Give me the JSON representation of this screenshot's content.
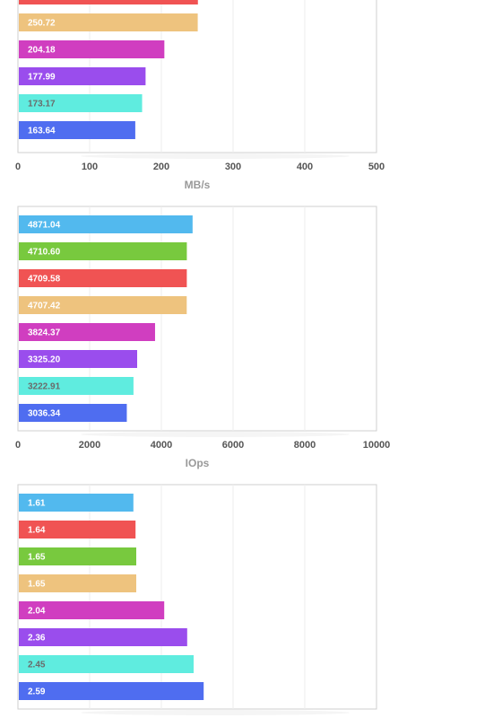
{
  "chart_data": [
    {
      "type": "bar",
      "orientation": "horizontal",
      "xlabel": "MB/s",
      "xlim": [
        0,
        500
      ],
      "xticks": [
        "0",
        "100",
        "200",
        "300",
        "400",
        "500"
      ],
      "grid": true,
      "series": [
        {
          "label": "250.97",
          "value": 250.97,
          "color": "#f05353"
        },
        {
          "label": "250.72",
          "value": 250.72,
          "color": "#eec37e"
        },
        {
          "label": "204.18",
          "value": 204.18,
          "color": "#d03ec0"
        },
        {
          "label": "177.99",
          "value": 177.99,
          "color": "#9a4ded"
        },
        {
          "label": "173.17",
          "value": 173.17,
          "color": "#5fecdf"
        },
        {
          "label": "163.64",
          "value": 163.64,
          "color": "#4f6df0"
        }
      ]
    },
    {
      "type": "bar",
      "orientation": "horizontal",
      "xlabel": "IOps",
      "xlim": [
        0,
        10000
      ],
      "xticks": [
        "0",
        "2000",
        "4000",
        "6000",
        "8000",
        "10000"
      ],
      "grid": true,
      "series": [
        {
          "label": "4871.04",
          "value": 4871.04,
          "color": "#52b9ee"
        },
        {
          "label": "4710.60",
          "value": 4710.6,
          "color": "#78c93e"
        },
        {
          "label": "4709.58",
          "value": 4709.58,
          "color": "#f05353"
        },
        {
          "label": "4707.42",
          "value": 4707.42,
          "color": "#eec37e"
        },
        {
          "label": "3824.37",
          "value": 3824.37,
          "color": "#d03ec0"
        },
        {
          "label": "3325.20",
          "value": 3325.2,
          "color": "#9a4ded"
        },
        {
          "label": "3222.91",
          "value": 3222.91,
          "color": "#5fecdf"
        },
        {
          "label": "3036.34",
          "value": 3036.34,
          "color": "#4f6df0"
        }
      ]
    },
    {
      "type": "bar",
      "orientation": "horizontal",
      "xlim": [
        0,
        5
      ],
      "grid": true,
      "series": [
        {
          "label": "1.61",
          "value": 1.61,
          "color": "#52b9ee"
        },
        {
          "label": "1.64",
          "value": 1.64,
          "color": "#f05353"
        },
        {
          "label": "1.65",
          "value": 1.65,
          "color": "#78c93e"
        },
        {
          "label": "1.65",
          "value": 1.65,
          "color": "#eec37e"
        },
        {
          "label": "2.04",
          "value": 2.04,
          "color": "#d03ec0"
        },
        {
          "label": "2.36",
          "value": 2.36,
          "color": "#9a4ded"
        },
        {
          "label": "2.45",
          "value": 2.45,
          "color": "#5fecdf"
        },
        {
          "label": "2.59",
          "value": 2.59,
          "color": "#4f6df0"
        }
      ]
    }
  ]
}
